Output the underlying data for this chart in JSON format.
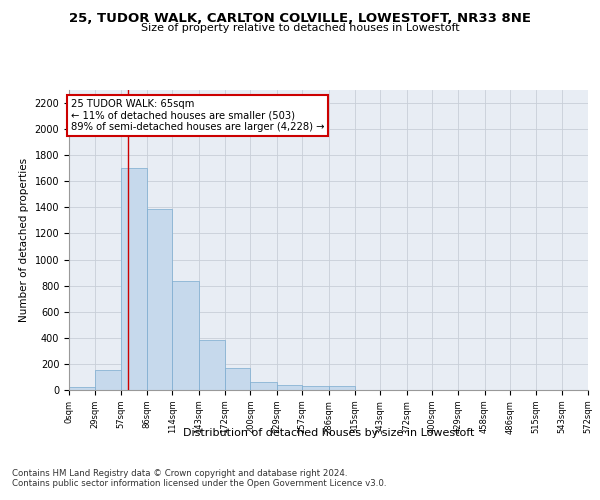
{
  "title1": "25, TUDOR WALK, CARLTON COLVILLE, LOWESTOFT, NR33 8NE",
  "title2": "Size of property relative to detached houses in Lowestoft",
  "xlabel": "Distribution of detached houses by size in Lowestoft",
  "ylabel": "Number of detached properties",
  "footer1": "Contains HM Land Registry data © Crown copyright and database right 2024.",
  "footer2": "Contains public sector information licensed under the Open Government Licence v3.0.",
  "annotation_title": "25 TUDOR WALK: 65sqm",
  "annotation_line1": "← 11% of detached houses are smaller (503)",
  "annotation_line2": "89% of semi-detached houses are larger (4,228) →",
  "property_size": 65,
  "bar_edges": [
    0,
    29,
    57,
    86,
    114,
    143,
    172,
    200,
    229,
    257,
    286,
    315,
    343,
    372,
    400,
    429,
    458,
    486,
    515,
    543,
    572
  ],
  "bar_heights": [
    20,
    155,
    1700,
    1390,
    835,
    385,
    165,
    65,
    38,
    30,
    28,
    0,
    0,
    0,
    0,
    0,
    0,
    0,
    0,
    0
  ],
  "bar_color": "#c6d9ec",
  "bar_edge_color": "#7aabcf",
  "line_color": "#cc0000",
  "annotation_box_edge": "#cc0000",
  "annotation_box_face": "#ffffff",
  "grid_color": "#c8cfd8",
  "background_color": "#e8edf4",
  "ylim": [
    0,
    2300
  ],
  "yticks": [
    0,
    200,
    400,
    600,
    800,
    1000,
    1200,
    1400,
    1600,
    1800,
    2000,
    2200
  ],
  "tick_labels": [
    "0sqm",
    "29sqm",
    "57sqm",
    "86sqm",
    "114sqm",
    "143sqm",
    "172sqm",
    "200sqm",
    "229sqm",
    "257sqm",
    "286sqm",
    "315sqm",
    "343sqm",
    "372sqm",
    "400sqm",
    "429sqm",
    "458sqm",
    "486sqm",
    "515sqm",
    "543sqm",
    "572sqm"
  ]
}
